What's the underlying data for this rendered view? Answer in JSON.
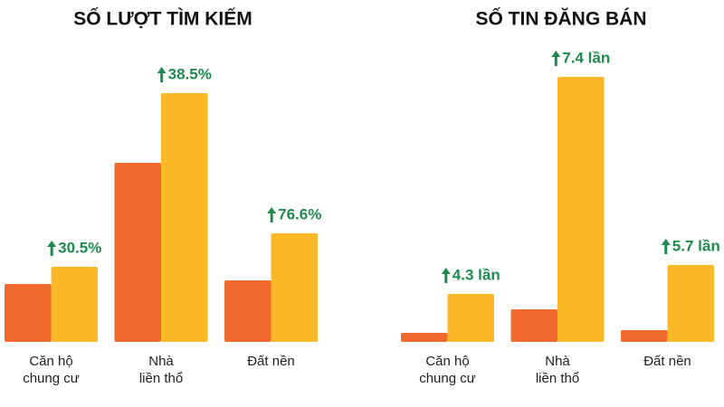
{
  "chart_data": [
    {
      "type": "bar",
      "title": "SỐ LƯỢT TÌM KIẾM",
      "categories": [
        [
          "Căn hộ",
          "chung cư"
        ],
        [
          "Nhà",
          "liền thổ"
        ],
        [
          "Đất nền"
        ]
      ],
      "series": [
        {
          "color": "#ef6a2c",
          "values": [
            64,
            198,
            68
          ]
        },
        {
          "color": "#fbb829",
          "values": [
            83,
            275,
            120
          ]
        }
      ],
      "annotations": [
        "30.5%",
        "38.5%",
        "76.6%"
      ],
      "ylim": [
        0,
        300
      ]
    },
    {
      "type": "bar",
      "title": "SỐ TIN ĐĂNG BÁN",
      "categories": [
        [
          "Căn hộ",
          "chung cư"
        ],
        [
          "Nhà",
          "liền thổ"
        ],
        [
          "Đất nền"
        ]
      ],
      "series": [
        {
          "color": "#ef6a2c",
          "values": [
            10,
            36,
            13
          ]
        },
        {
          "color": "#fbb829",
          "values": [
            53,
            293,
            85
          ]
        }
      ],
      "annotations": [
        "4.3 lần",
        "7.4 lần",
        "5.7 lần"
      ],
      "ylim": [
        0,
        300
      ]
    }
  ]
}
